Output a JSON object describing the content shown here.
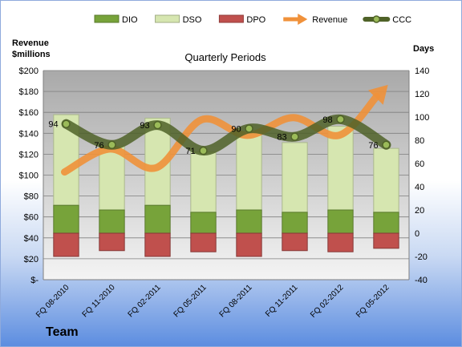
{
  "chart_data": {
    "type": "bar",
    "title": "Quarterly Periods",
    "left_axis_label_line1": "Revenue",
    "left_axis_label_line2": "$millions",
    "right_axis_label": "Days",
    "left_ylim": [
      0,
      200
    ],
    "left_ticks": [
      0,
      20,
      40,
      60,
      80,
      100,
      120,
      140,
      160,
      180,
      200
    ],
    "left_tick_labels": [
      "$-",
      "$20",
      "$40",
      "$60",
      "$80",
      "$100",
      "$120",
      "$140",
      "$160",
      "$180",
      "$200"
    ],
    "right_ylim": [
      -40,
      140
    ],
    "right_ticks": [
      -40,
      -20,
      0,
      20,
      40,
      60,
      80,
      100,
      120,
      140
    ],
    "categories": [
      "FQ 08-2010",
      "FQ 11-2010",
      "FQ 02-2011",
      "FQ 05-2011",
      "FQ 08-2011",
      "FQ 11-2011",
      "FQ 02-2012",
      "FQ 05-2012"
    ],
    "series": [
      {
        "name": "DIO",
        "axis": "right",
        "kind": "stacked-bar",
        "color": "#77a33a",
        "values": [
          24,
          20,
          24,
          18,
          20,
          18,
          20,
          18
        ]
      },
      {
        "name": "DSO",
        "axis": "right",
        "kind": "stacked-bar",
        "color": "#d6e6b0",
        "values": [
          78,
          55,
          75,
          52,
          68,
          60,
          72,
          55
        ]
      },
      {
        "name": "DPO",
        "axis": "right",
        "kind": "negative-bar",
        "color": "#c0504d",
        "values": [
          -20,
          -15,
          -20,
          -16,
          -20,
          -15,
          -16,
          -13
        ]
      },
      {
        "name": "Revenue",
        "axis": "left",
        "kind": "line-arrow",
        "color": "#f0913a",
        "values": [
          103,
          125,
          107,
          153,
          138,
          155,
          138,
          183
        ]
      },
      {
        "name": "CCC",
        "axis": "right",
        "kind": "line-marker",
        "color": "#4f6228",
        "values": [
          94,
          76,
          93,
          71,
          90,
          83,
          98,
          76
        ]
      }
    ],
    "ccc_data_labels": [
      "94",
      "76",
      "93",
      "71",
      "90",
      "83",
      "98",
      "76"
    ],
    "legend_position": "top",
    "grid": true
  },
  "footer_label": "Team"
}
